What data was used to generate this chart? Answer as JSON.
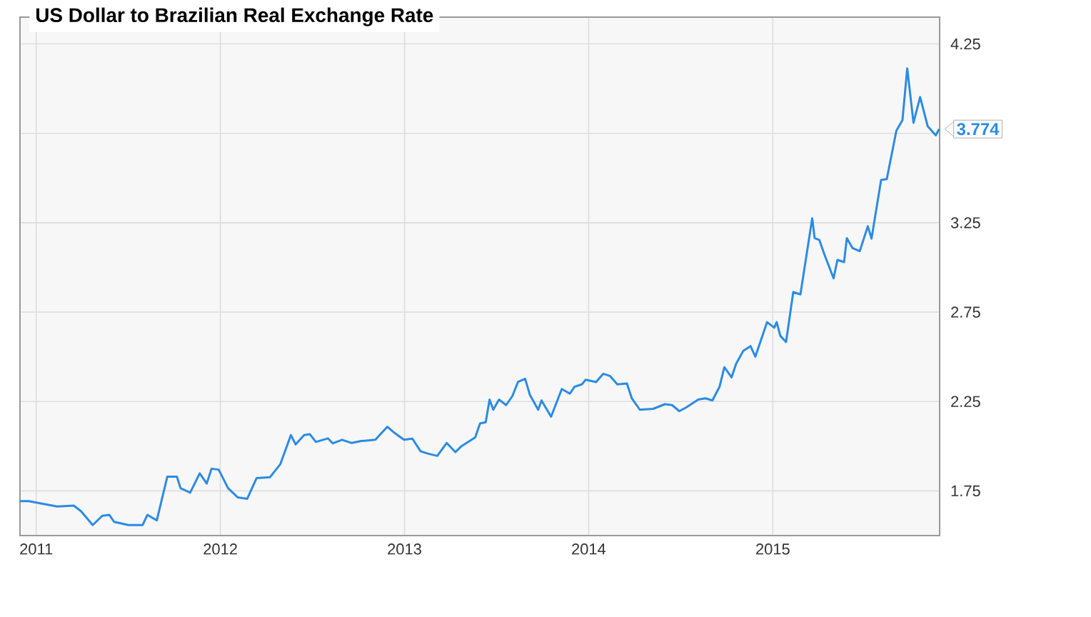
{
  "chart_data": {
    "type": "line",
    "title": "US Dollar to Brazilian Real Exchange Rate",
    "x": [
      2010.912,
      2010.959,
      2011.114,
      2011.204,
      2011.243,
      2011.307,
      2011.359,
      2011.397,
      2011.423,
      2011.501,
      2011.578,
      2011.604,
      2011.655,
      2011.712,
      2011.764,
      2011.784,
      2011.836,
      2011.888,
      2011.926,
      2011.952,
      2011.991,
      2012.042,
      2012.094,
      2012.146,
      2012.197,
      2012.27,
      2012.326,
      2012.383,
      2012.409,
      2012.455,
      2012.486,
      2012.519,
      2012.584,
      2012.61,
      2012.661,
      2012.713,
      2012.765,
      2012.842,
      2012.907,
      2012.945,
      2012.997,
      2013.043,
      2013.087,
      2013.126,
      2013.178,
      2013.229,
      2013.276,
      2013.307,
      2013.384,
      2013.41,
      2013.441,
      2013.462,
      2013.482,
      2013.513,
      2013.552,
      2013.586,
      2013.616,
      2013.655,
      2013.681,
      2013.726,
      2013.744,
      2013.796,
      2013.854,
      2013.898,
      2013.924,
      2013.963,
      2013.984,
      2014.04,
      2014.079,
      2014.117,
      2014.156,
      2014.208,
      2014.234,
      2014.278,
      2014.35,
      2014.414,
      2014.453,
      2014.492,
      2014.53,
      2014.595,
      2014.634,
      2014.672,
      2014.711,
      2014.737,
      2014.776,
      2014.801,
      2014.84,
      2014.879,
      2014.905,
      2014.969,
      2015.008,
      2015.021,
      2015.041,
      2015.072,
      2015.111,
      2015.15,
      2015.214,
      2015.227,
      2015.253,
      2015.279,
      2015.33,
      2015.351,
      2015.387,
      2015.402,
      2015.433,
      2015.472,
      2015.516,
      2015.536,
      2015.588,
      2015.619,
      2015.671,
      2015.704,
      2015.73,
      2015.764,
      2015.8,
      2015.841,
      2015.885,
      2015.903
    ],
    "series": [
      {
        "color": "#2b8be3",
        "values": [
          1.693,
          1.693,
          1.663,
          1.668,
          1.637,
          1.559,
          1.611,
          1.616,
          1.577,
          1.559,
          1.559,
          1.616,
          1.585,
          1.83,
          1.83,
          1.765,
          1.74,
          1.848,
          1.791,
          1.874,
          1.869,
          1.765,
          1.714,
          1.706,
          1.822,
          1.827,
          1.9,
          2.062,
          2.01,
          2.062,
          2.067,
          2.024,
          2.044,
          2.016,
          2.036,
          2.018,
          2.029,
          2.036,
          2.109,
          2.075,
          2.036,
          2.042,
          1.972,
          1.959,
          1.946,
          2.018,
          1.967,
          1.998,
          2.049,
          2.127,
          2.134,
          2.261,
          2.204,
          2.261,
          2.23,
          2.281,
          2.359,
          2.377,
          2.287,
          2.204,
          2.256,
          2.165,
          2.32,
          2.294,
          2.333,
          2.346,
          2.372,
          2.359,
          2.405,
          2.392,
          2.346,
          2.351,
          2.268,
          2.204,
          2.209,
          2.235,
          2.23,
          2.196,
          2.217,
          2.261,
          2.268,
          2.256,
          2.333,
          2.442,
          2.385,
          2.462,
          2.534,
          2.56,
          2.501,
          2.694,
          2.663,
          2.694,
          2.617,
          2.583,
          2.862,
          2.849,
          3.275,
          3.164,
          3.153,
          3.076,
          2.939,
          3.042,
          3.03,
          3.164,
          3.108,
          3.091,
          3.23,
          3.161,
          3.489,
          3.494,
          3.765,
          3.824,
          4.113,
          3.809,
          3.953,
          3.79,
          3.739,
          3.774
        ]
      }
    ],
    "xlim": [
      2010.912,
      2015.906
    ],
    "ylim": [
      1.5,
      4.4
    ],
    "xticks": [
      2011,
      2012,
      2013,
      2014,
      2015
    ],
    "yticks": [
      1.75,
      2.25,
      2.75,
      3.25,
      {
        "value": 3.75,
        "label": null
      },
      4.25
    ],
    "grid": true,
    "annotations": [
      {
        "text": "3.774",
        "x": 2015.903,
        "y": 3.774
      }
    ]
  }
}
